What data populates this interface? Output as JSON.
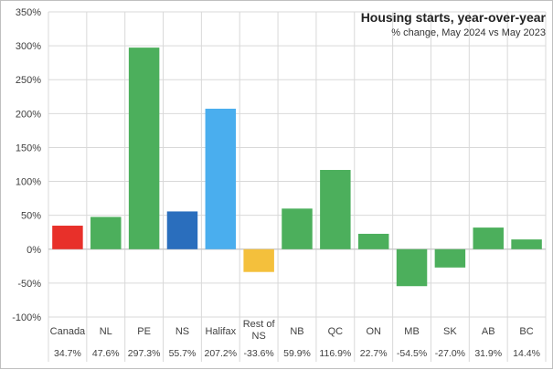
{
  "chart_data": {
    "type": "bar",
    "title": "Housing starts, year-over-year",
    "subtitle": "% change, May 2024 vs May 2023",
    "xlabel": "",
    "ylabel": "",
    "ylim": [
      -100,
      350
    ],
    "yticks": [
      350,
      300,
      250,
      200,
      150,
      100,
      50,
      0,
      -50,
      -100
    ],
    "ytick_labels": [
      "350%",
      "300%",
      "250%",
      "200%",
      "150%",
      "100%",
      "50%",
      "0%",
      "-50%",
      "-100%"
    ],
    "grid": true,
    "legend": "none",
    "categories": [
      [
        "Canada"
      ],
      [
        "NL"
      ],
      [
        "PE"
      ],
      [
        "NS"
      ],
      [
        "Halifax"
      ],
      [
        "Rest of",
        "NS"
      ],
      [
        "NB"
      ],
      [
        "QC"
      ],
      [
        "ON"
      ],
      [
        "MB"
      ],
      [
        "SK"
      ],
      [
        "AB"
      ],
      [
        "BC"
      ]
    ],
    "values": [
      34.7,
      47.6,
      297.3,
      55.7,
      207.2,
      -33.6,
      59.9,
      116.9,
      22.7,
      -54.5,
      -27.0,
      31.9,
      14.4
    ],
    "value_labels": [
      "34.7%",
      "47.6%",
      "297.3%",
      "55.7%",
      "207.2%",
      "-33.6%",
      "59.9%",
      "116.9%",
      "22.7%",
      "-54.5%",
      "-27.0%",
      "31.9%",
      "14.4%"
    ],
    "colors": [
      "#e8302a",
      "#4caf5c",
      "#4caf5c",
      "#2a6ebd",
      "#4aaeee",
      "#f4c03c",
      "#4caf5c",
      "#4caf5c",
      "#4caf5c",
      "#4caf5c",
      "#4caf5c",
      "#4caf5c",
      "#4caf5c"
    ]
  }
}
